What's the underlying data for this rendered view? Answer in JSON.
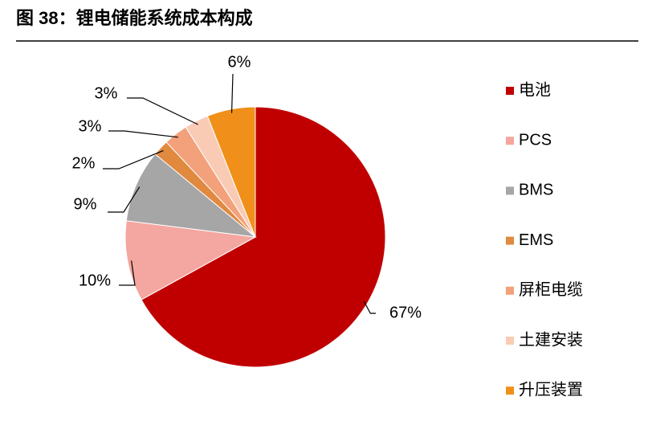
{
  "chart_data": {
    "type": "pie",
    "title": "图 38：锂电储能系统成本构成",
    "categories": [
      "电池",
      "PCS",
      "BMS",
      "EMS",
      "屏柜电缆",
      "土建安装",
      "升压装置"
    ],
    "values": [
      67,
      10,
      9,
      2,
      3,
      3,
      6
    ],
    "value_labels": [
      "67%",
      "10%",
      "9%",
      "2%",
      "3%",
      "3%",
      "6%"
    ],
    "colors": [
      "#c00000",
      "#f4a6a0",
      "#a6a6a6",
      "#e0893f",
      "#f2a17a",
      "#f9cbb5",
      "#f0901a"
    ]
  }
}
